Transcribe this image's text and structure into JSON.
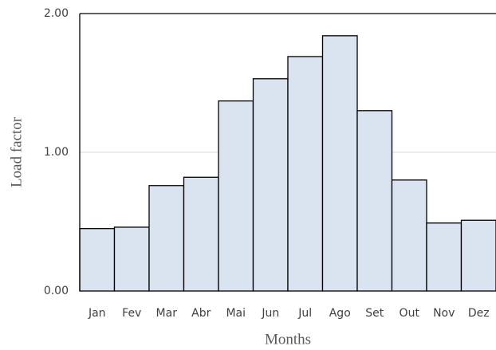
{
  "chart_data": {
    "type": "bar",
    "categories": [
      "Jan",
      "Fev",
      "Mar",
      "Abr",
      "Mai",
      "Jun",
      "Jul",
      "Ago",
      "Set",
      "Out",
      "Nov",
      "Dez"
    ],
    "values": [
      0.45,
      0.46,
      0.76,
      0.82,
      1.37,
      1.53,
      1.69,
      1.84,
      1.3,
      0.8,
      0.49,
      0.51
    ],
    "color": "#dae3f0",
    "ylim": [
      0,
      2
    ],
    "yticks": [
      {
        "value": 0,
        "label": "0.00"
      },
      {
        "value": 1,
        "label": "1.00"
      },
      {
        "value": 2,
        "label": "2.00"
      }
    ],
    "grid": true,
    "x_label": "Months",
    "y_label": "Load factor"
  }
}
